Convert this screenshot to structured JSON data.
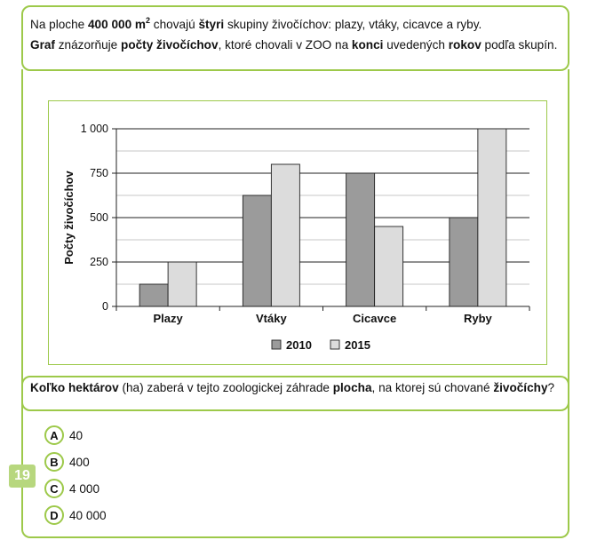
{
  "intro": {
    "line1": {
      "t1": "Na ploche ",
      "area": "400 000 m",
      "sup": "2",
      "t2": " chovajú ",
      "four": "štyri",
      "t3": " skupiny živočíchov: plazy, vtáky, cicavce a ryby."
    },
    "line2": {
      "graf": "Graf",
      "t1": " znázorňuje ",
      "pocty": "počty živočíchov",
      "t2": ", ktoré chovali v ZOO na ",
      "konci": "konci",
      "t3": " uvedených ",
      "rokov": "rokov",
      "t4": " podľa skupín."
    }
  },
  "chart_data": {
    "type": "bar",
    "categories": [
      "Plazy",
      "Vtáky",
      "Cicavce",
      "Ryby"
    ],
    "series": [
      {
        "name": "2010",
        "values": [
          125,
          625,
          750,
          500
        ],
        "color": "#9b9b9b"
      },
      {
        "name": "2015",
        "values": [
          250,
          800,
          450,
          1000
        ],
        "color": "#dcdcdc"
      }
    ],
    "ylabel": "Počty živočíchov",
    "ylim": [
      0,
      1000
    ],
    "yticks": [
      0,
      250,
      500,
      750,
      1000
    ],
    "ytick_labels": [
      "0",
      "250",
      "500",
      "750",
      "1 000"
    ],
    "minor_gridlines": true,
    "legend": "bottom"
  },
  "question": {
    "b1": "Koľko hektárov",
    "t1": " (ha) zaberá v tejto zoologickej záhrade ",
    "b2": "plocha",
    "t2": ", na ktorej sú chované ",
    "b3": "živočíchy",
    "t3": "?"
  },
  "task_number": "19",
  "options": [
    {
      "letter": "A",
      "text": "40"
    },
    {
      "letter": "B",
      "text": "400"
    },
    {
      "letter": "C",
      "text": "4 000"
    },
    {
      "letter": "D",
      "text": "40 000"
    }
  ],
  "colors": {
    "accent": "#9dc94a",
    "badge": "#b7d77e"
  }
}
